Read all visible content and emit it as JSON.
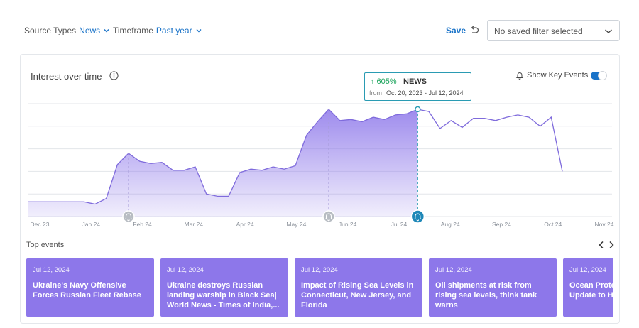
{
  "filters": {
    "source_label": "Source Types",
    "source_value": "News",
    "timeframe_label": "Timeframe",
    "timeframe_value": "Past year"
  },
  "toolbar": {
    "save_label": "Save",
    "saved_filter_placeholder": "No saved filter selected"
  },
  "card": {
    "title": "Interest over time",
    "key_events_label": "Show Key Events",
    "key_events_enabled": true
  },
  "tooltip": {
    "change": "↑ 605%",
    "series": "NEWS",
    "from_label": "from",
    "range": "Oct 20, 2023 - Jul 12, 2024"
  },
  "chart_data": {
    "type": "area",
    "title": "Interest over time",
    "x_ticks": [
      "Dec 23",
      "Jan 24",
      "Feb 24",
      "Mar 24",
      "Apr 24",
      "May 24",
      "Jun 24",
      "Jul 24",
      "Aug 24",
      "Sep 24",
      "Oct 24",
      "Nov 24"
    ],
    "ylim": [
      0,
      100
    ],
    "grid": true,
    "series": [
      {
        "values": [
          13,
          13,
          13,
          13,
          13,
          13,
          11,
          16,
          46,
          56,
          49,
          47,
          48,
          41,
          41,
          44,
          20,
          18,
          18,
          39,
          42,
          41,
          44,
          42,
          45,
          72,
          84,
          95,
          85,
          86,
          84,
          88,
          86,
          90,
          91,
          95,
          93,
          78,
          85,
          79,
          87,
          87,
          85,
          88,
          90,
          88,
          80,
          88,
          40
        ],
        "highlighted_until_index": 35
      }
    ],
    "key_event_markers": [
      {
        "index": 9,
        "icon": "bell-icon"
      },
      {
        "index": 27,
        "icon": "bell-icon"
      },
      {
        "index": 35,
        "icon": "bell-icon",
        "active": true
      }
    ]
  },
  "top_events": {
    "label": "Top events",
    "items": [
      {
        "date": "Jul 12, 2024",
        "headline": "Ukraine's Navy Offensive Forces Russian Fleet Rebase"
      },
      {
        "date": "Jul 12, 2024",
        "headline": "Ukraine destroys Russian landing warship in Black Sea| World News - Times of India,..."
      },
      {
        "date": "Jul 12, 2024",
        "headline": "Impact of Rising Sea Levels in Connecticut, New Jersey, and Florida"
      },
      {
        "date": "Jul 12, 2024",
        "headline": "Oil shipments at risk from rising sea levels, think tank warns"
      },
      {
        "date": "Jul 12, 2024",
        "headline": "Ocean Protection Adopts Update to Help California"
      }
    ]
  },
  "colors": {
    "accent": "#1a73c8",
    "area": "#8d77ea",
    "line": "#7f6bdc",
    "tooltip_border": "#2a9bb3",
    "up": "#19a35a"
  }
}
